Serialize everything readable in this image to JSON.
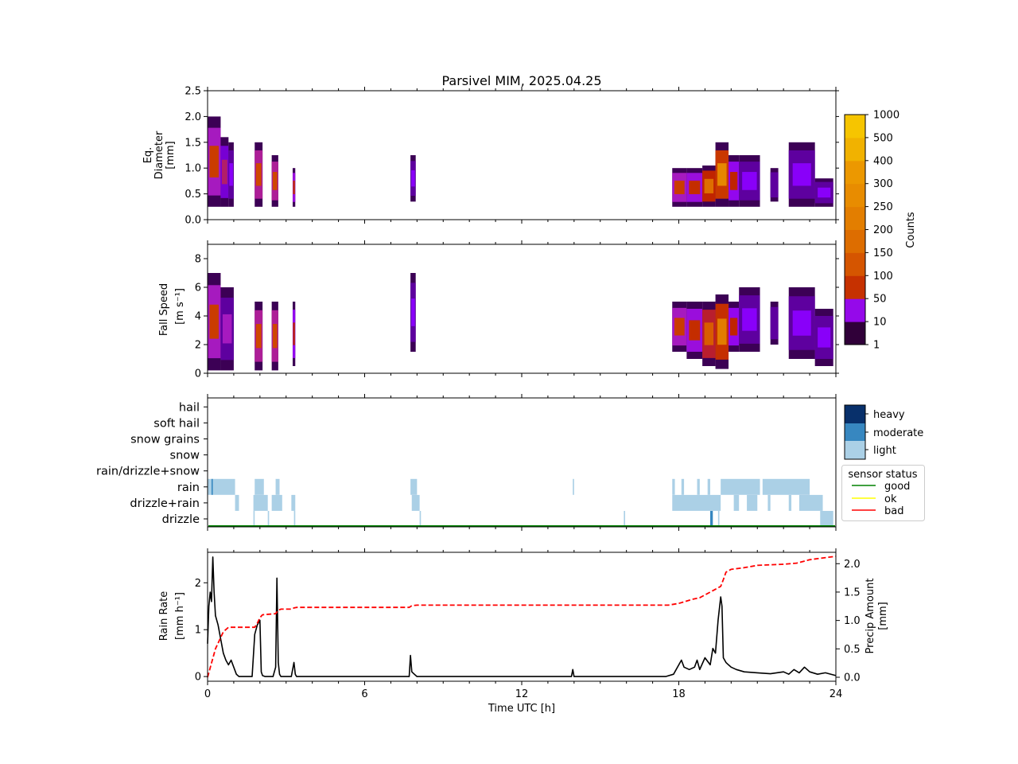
{
  "title": "Parsivel MIM, 2025.04.25",
  "panels": {
    "diameter": {
      "ylabel_line1": "Eq.",
      "ylabel_line2": "Diameter",
      "ylabel_line3": "[mm]"
    },
    "speed": {
      "ylabel_line1": "Fall Speed",
      "ylabel_line2": "[m s⁻¹]"
    },
    "rain": {
      "ylabel_line1": "Rain Rate",
      "ylabel_line2": "[mm h⁻¹]",
      "y2label_line1": "Precip Amount",
      "y2label_line2": "[mm]",
      "xlabel": "Time UTC [h]"
    }
  },
  "colorbar": {
    "label": "Counts",
    "ticks": [
      "1",
      "10",
      "50",
      "100",
      "150",
      "200",
      "250",
      "300",
      "400",
      "500",
      "1000"
    ]
  },
  "intensity_legend": {
    "items": [
      {
        "label": "heavy",
        "color": "#08306b"
      },
      {
        "label": "moderate",
        "color": "#3787c0"
      },
      {
        "label": "light",
        "color": "#abd0e6"
      }
    ]
  },
  "status_legend": {
    "title": "sensor status",
    "items": [
      {
        "label": "good",
        "color": "#008000"
      },
      {
        "label": "ok",
        "color": "#ffff00"
      },
      {
        "label": "bad",
        "color": "#ff0000"
      }
    ]
  },
  "chart_data": [
    {
      "type": "heatmap",
      "xlim": [
        0,
        24
      ],
      "ylim": [
        0,
        2.5
      ],
      "yticks": [
        "0.0",
        "0.5",
        "1.0",
        "1.5",
        "2.0",
        "2.5"
      ],
      "columns": [
        {
          "t0": 0.0,
          "t1": 0.5,
          "ymin": 0.25,
          "ymax": 2.0,
          "peak": 80
        },
        {
          "t0": 0.5,
          "t1": 0.8,
          "ymin": 0.25,
          "ymax": 1.6,
          "peak": 30
        },
        {
          "t0": 0.8,
          "t1": 1.0,
          "ymin": 0.25,
          "ymax": 1.5,
          "peak": 10
        },
        {
          "t0": 1.8,
          "t1": 2.1,
          "ymin": 0.25,
          "ymax": 1.5,
          "peak": 100
        },
        {
          "t0": 2.45,
          "t1": 2.7,
          "ymin": 0.25,
          "ymax": 1.25,
          "peak": 100
        },
        {
          "t0": 3.25,
          "t1": 3.35,
          "ymin": 0.25,
          "ymax": 1.0,
          "peak": 60
        },
        {
          "t0": 7.75,
          "t1": 7.95,
          "ymin": 0.35,
          "ymax": 1.25,
          "peak": 10
        },
        {
          "t0": 17.75,
          "t1": 18.3,
          "ymin": 0.25,
          "ymax": 1.0,
          "peak": 80
        },
        {
          "t0": 18.3,
          "t1": 18.9,
          "ymin": 0.25,
          "ymax": 1.0,
          "peak": 60
        },
        {
          "t0": 18.9,
          "t1": 19.4,
          "ymin": 0.25,
          "ymax": 1.05,
          "peak": 200
        },
        {
          "t0": 19.4,
          "t1": 19.9,
          "ymin": 0.25,
          "ymax": 1.5,
          "peak": 300
        },
        {
          "t0": 19.9,
          "t1": 20.3,
          "ymin": 0.25,
          "ymax": 1.25,
          "peak": 50
        },
        {
          "t0": 20.3,
          "t1": 21.1,
          "ymin": 0.25,
          "ymax": 1.25,
          "peak": 10
        },
        {
          "t0": 21.5,
          "t1": 21.8,
          "ymin": 0.35,
          "ymax": 1.0,
          "peak": 5
        },
        {
          "t0": 22.2,
          "t1": 23.2,
          "ymin": 0.25,
          "ymax": 1.5,
          "peak": 10
        },
        {
          "t0": 23.2,
          "t1": 23.9,
          "ymin": 0.25,
          "ymax": 0.8,
          "peak": 10
        }
      ]
    },
    {
      "type": "heatmap",
      "xlim": [
        0,
        24
      ],
      "ylim": [
        0,
        9
      ],
      "yticks": [
        "0",
        "2",
        "4",
        "6",
        "8"
      ],
      "columns": [
        {
          "t0": 0.0,
          "t1": 0.5,
          "ymin": 0.2,
          "ymax": 7.0,
          "peak": 80
        },
        {
          "t0": 0.5,
          "t1": 1.0,
          "ymin": 0.2,
          "ymax": 6.0,
          "peak": 20
        },
        {
          "t0": 1.8,
          "t1": 2.1,
          "ymin": 0.2,
          "ymax": 5.0,
          "peak": 100
        },
        {
          "t0": 2.45,
          "t1": 2.7,
          "ymin": 0.2,
          "ymax": 5.0,
          "peak": 100
        },
        {
          "t0": 3.25,
          "t1": 3.35,
          "ymin": 0.5,
          "ymax": 5.0,
          "peak": 50
        },
        {
          "t0": 7.75,
          "t1": 7.95,
          "ymin": 1.5,
          "ymax": 7.0,
          "peak": 10
        },
        {
          "t0": 17.75,
          "t1": 18.3,
          "ymin": 1.5,
          "ymax": 5.0,
          "peak": 80
        },
        {
          "t0": 18.3,
          "t1": 18.9,
          "ymin": 1.0,
          "ymax": 5.0,
          "peak": 60
        },
        {
          "t0": 18.9,
          "t1": 19.4,
          "ymin": 0.5,
          "ymax": 5.0,
          "peak": 150
        },
        {
          "t0": 19.4,
          "t1": 19.9,
          "ymin": 0.3,
          "ymax": 5.5,
          "peak": 250
        },
        {
          "t0": 19.9,
          "t1": 20.3,
          "ymin": 1.5,
          "ymax": 5.0,
          "peak": 50
        },
        {
          "t0": 20.3,
          "t1": 21.1,
          "ymin": 1.5,
          "ymax": 6.0,
          "peak": 10
        },
        {
          "t0": 21.5,
          "t1": 21.8,
          "ymin": 2.0,
          "ymax": 5.0,
          "peak": 5
        },
        {
          "t0": 22.2,
          "t1": 23.2,
          "ymin": 1.0,
          "ymax": 6.0,
          "peak": 10
        },
        {
          "t0": 23.2,
          "t1": 23.9,
          "ymin": 0.5,
          "ymax": 4.5,
          "peak": 10
        }
      ]
    },
    {
      "type": "heatmap",
      "xlim": [
        0,
        24
      ],
      "categories": [
        "drizzle",
        "drizzle+rain",
        "rain",
        "rain/drizzle+snow",
        "snow",
        "snow grains",
        "soft hail",
        "hail"
      ],
      "segments": [
        {
          "category": "rain",
          "t0": 0.0,
          "t1": 1.05,
          "intensity": "light"
        },
        {
          "category": "rain",
          "t0": 0.15,
          "t1": 0.2,
          "intensity": "moderate"
        },
        {
          "category": "drizzle+rain",
          "t0": 1.05,
          "t1": 1.2,
          "intensity": "light"
        },
        {
          "category": "rain",
          "t0": 1.8,
          "t1": 2.15,
          "intensity": "light"
        },
        {
          "category": "drizzle+rain",
          "t0": 1.75,
          "t1": 2.3,
          "intensity": "light"
        },
        {
          "category": "drizzle",
          "t0": 1.75,
          "t1": 1.8,
          "intensity": "light"
        },
        {
          "category": "rain",
          "t0": 2.6,
          "t1": 2.75,
          "intensity": "light"
        },
        {
          "category": "drizzle+rain",
          "t0": 2.45,
          "t1": 2.85,
          "intensity": "light"
        },
        {
          "category": "drizzle",
          "t0": 2.3,
          "t1": 2.35,
          "intensity": "light"
        },
        {
          "category": "drizzle+rain",
          "t0": 3.2,
          "t1": 3.35,
          "intensity": "light"
        },
        {
          "category": "drizzle",
          "t0": 3.3,
          "t1": 3.35,
          "intensity": "light"
        },
        {
          "category": "rain",
          "t0": 7.75,
          "t1": 8.0,
          "intensity": "light"
        },
        {
          "category": "drizzle+rain",
          "t0": 7.8,
          "t1": 8.1,
          "intensity": "light"
        },
        {
          "category": "drizzle",
          "t0": 8.1,
          "t1": 8.15,
          "intensity": "light"
        },
        {
          "category": "rain",
          "t0": 13.95,
          "t1": 14.0,
          "intensity": "light"
        },
        {
          "category": "drizzle",
          "t0": 15.9,
          "t1": 15.95,
          "intensity": "light"
        },
        {
          "category": "rain",
          "t0": 17.75,
          "t1": 17.85,
          "intensity": "light"
        },
        {
          "category": "rain",
          "t0": 18.1,
          "t1": 18.2,
          "intensity": "light"
        },
        {
          "category": "rain",
          "t0": 18.7,
          "t1": 18.8,
          "intensity": "light"
        },
        {
          "category": "rain",
          "t0": 19.1,
          "t1": 19.2,
          "intensity": "light"
        },
        {
          "category": "drizzle+rain",
          "t0": 17.75,
          "t1": 19.6,
          "intensity": "light"
        },
        {
          "category": "drizzle",
          "t0": 19.2,
          "t1": 19.3,
          "intensity": "moderate"
        },
        {
          "category": "drizzle",
          "t0": 19.5,
          "t1": 19.55,
          "intensity": "light"
        },
        {
          "category": "rain",
          "t0": 19.6,
          "t1": 21.1,
          "intensity": "light"
        },
        {
          "category": "rain",
          "t0": 21.2,
          "t1": 23.0,
          "intensity": "light"
        },
        {
          "category": "drizzle+rain",
          "t0": 20.1,
          "t1": 20.3,
          "intensity": "light"
        },
        {
          "category": "drizzle+rain",
          "t0": 20.6,
          "t1": 21.0,
          "intensity": "light"
        },
        {
          "category": "drizzle+rain",
          "t0": 21.4,
          "t1": 21.5,
          "intensity": "light"
        },
        {
          "category": "drizzle+rain",
          "t0": 22.2,
          "t1": 22.3,
          "intensity": "light"
        },
        {
          "category": "drizzle+rain",
          "t0": 22.6,
          "t1": 23.5,
          "intensity": "light"
        },
        {
          "category": "drizzle",
          "t0": 23.4,
          "t1": 23.9,
          "intensity": "light"
        }
      ],
      "status": "good"
    },
    {
      "type": "line",
      "xlim": [
        0,
        24
      ],
      "xticks": [
        "0",
        "6",
        "12",
        "18",
        "24"
      ],
      "ylim": [
        -0.1,
        2.65
      ],
      "yticks": [
        "0",
        "1",
        "2"
      ],
      "y2lim": [
        -0.07,
        2.2
      ],
      "y2ticks": [
        "0.0",
        "0.5",
        "1.0",
        "1.5",
        "2.0"
      ],
      "series": [
        {
          "axis": "left",
          "color": "#000000",
          "x": [
            0,
            0.05,
            0.1,
            0.15,
            0.2,
            0.25,
            0.3,
            0.4,
            0.5,
            0.6,
            0.7,
            0.8,
            0.9,
            1.0,
            1.1,
            1.2,
            1.7,
            1.8,
            1.9,
            2.0,
            2.05,
            2.1,
            2.2,
            2.5,
            2.6,
            2.65,
            2.7,
            2.75,
            2.8,
            3.2,
            3.3,
            3.35,
            3.4,
            3.5,
            7.7,
            7.75,
            7.8,
            7.9,
            8.0,
            13.9,
            13.95,
            14.0,
            17.5,
            17.8,
            18.0,
            18.1,
            18.2,
            18.4,
            18.6,
            18.7,
            18.8,
            19.0,
            19.2,
            19.3,
            19.4,
            19.5,
            19.6,
            19.65,
            19.7,
            19.8,
            19.9,
            20.0,
            20.2,
            20.5,
            21.0,
            21.5,
            22.0,
            22.2,
            22.4,
            22.6,
            22.8,
            23.0,
            23.3,
            23.6,
            24.0
          ],
          "y": [
            0.7,
            1.5,
            1.8,
            1.6,
            2.55,
            1.8,
            1.3,
            1.1,
            0.8,
            0.5,
            0.35,
            0.25,
            0.35,
            0.2,
            0.05,
            0.0,
            0.0,
            0.9,
            1.1,
            1.2,
            0.1,
            0.02,
            0.0,
            0.0,
            0.2,
            2.1,
            0.3,
            0.05,
            0.0,
            0.0,
            0.3,
            0.05,
            0.0,
            0.0,
            0.0,
            0.45,
            0.1,
            0.05,
            0.0,
            0.0,
            0.15,
            0.0,
            0.0,
            0.05,
            0.25,
            0.35,
            0.2,
            0.15,
            0.2,
            0.35,
            0.15,
            0.4,
            0.25,
            0.6,
            0.5,
            1.2,
            1.7,
            1.5,
            0.4,
            0.3,
            0.25,
            0.2,
            0.15,
            0.1,
            0.08,
            0.06,
            0.1,
            0.05,
            0.15,
            0.08,
            0.2,
            0.1,
            0.05,
            0.08,
            0.02
          ]
        },
        {
          "axis": "right",
          "color": "#ff0000",
          "style": "dashed",
          "x": [
            0,
            0.3,
            0.6,
            0.8,
            1.0,
            1.8,
            1.9,
            2.0,
            2.1,
            2.6,
            2.7,
            2.8,
            3.2,
            3.3,
            3.4,
            7.7,
            7.8,
            8.0,
            17.6,
            18.0,
            18.5,
            18.8,
            19.0,
            19.2,
            19.4,
            19.6,
            19.7,
            19.8,
            20.0,
            20.5,
            21.0,
            22.0,
            22.5,
            23.0,
            23.5,
            24.0
          ],
          "y": [
            0.0,
            0.5,
            0.8,
            0.88,
            0.88,
            0.88,
            0.95,
            1.05,
            1.1,
            1.12,
            1.18,
            1.2,
            1.2,
            1.22,
            1.23,
            1.23,
            1.26,
            1.27,
            1.27,
            1.3,
            1.37,
            1.4,
            1.45,
            1.5,
            1.55,
            1.6,
            1.72,
            1.85,
            1.9,
            1.93,
            1.97,
            1.99,
            2.01,
            2.07,
            2.1,
            2.13
          ]
        }
      ]
    }
  ]
}
